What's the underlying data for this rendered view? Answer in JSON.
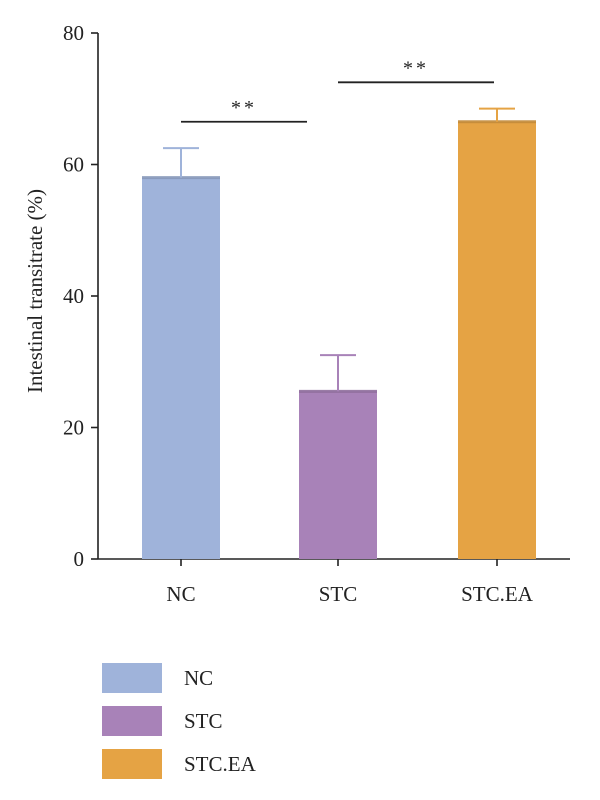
{
  "chart_data": {
    "type": "bar",
    "title": "",
    "ylabel": "Intestinal transitrate (%)",
    "xlabel": "",
    "ylim": [
      0,
      80
    ],
    "yticks": [
      0,
      20,
      40,
      60,
      80
    ],
    "categories": [
      "NC",
      "STC",
      "STC.EA"
    ],
    "values": [
      58,
      25.5,
      66.5
    ],
    "errors": [
      4.5,
      5.5,
      2
    ],
    "colors": [
      "#9fb3da",
      "#a882b8",
      "#e5a344"
    ],
    "significance": [
      {
        "from": "NC",
        "to": "STC",
        "label": "**",
        "y": 66.5
      },
      {
        "from": "STC",
        "to": "STC.EA",
        "label": "**",
        "y": 72.5
      }
    ],
    "legend": {
      "position": "bottom",
      "entries": [
        "NC",
        "STC",
        "STC.EA"
      ]
    },
    "grid": false
  }
}
